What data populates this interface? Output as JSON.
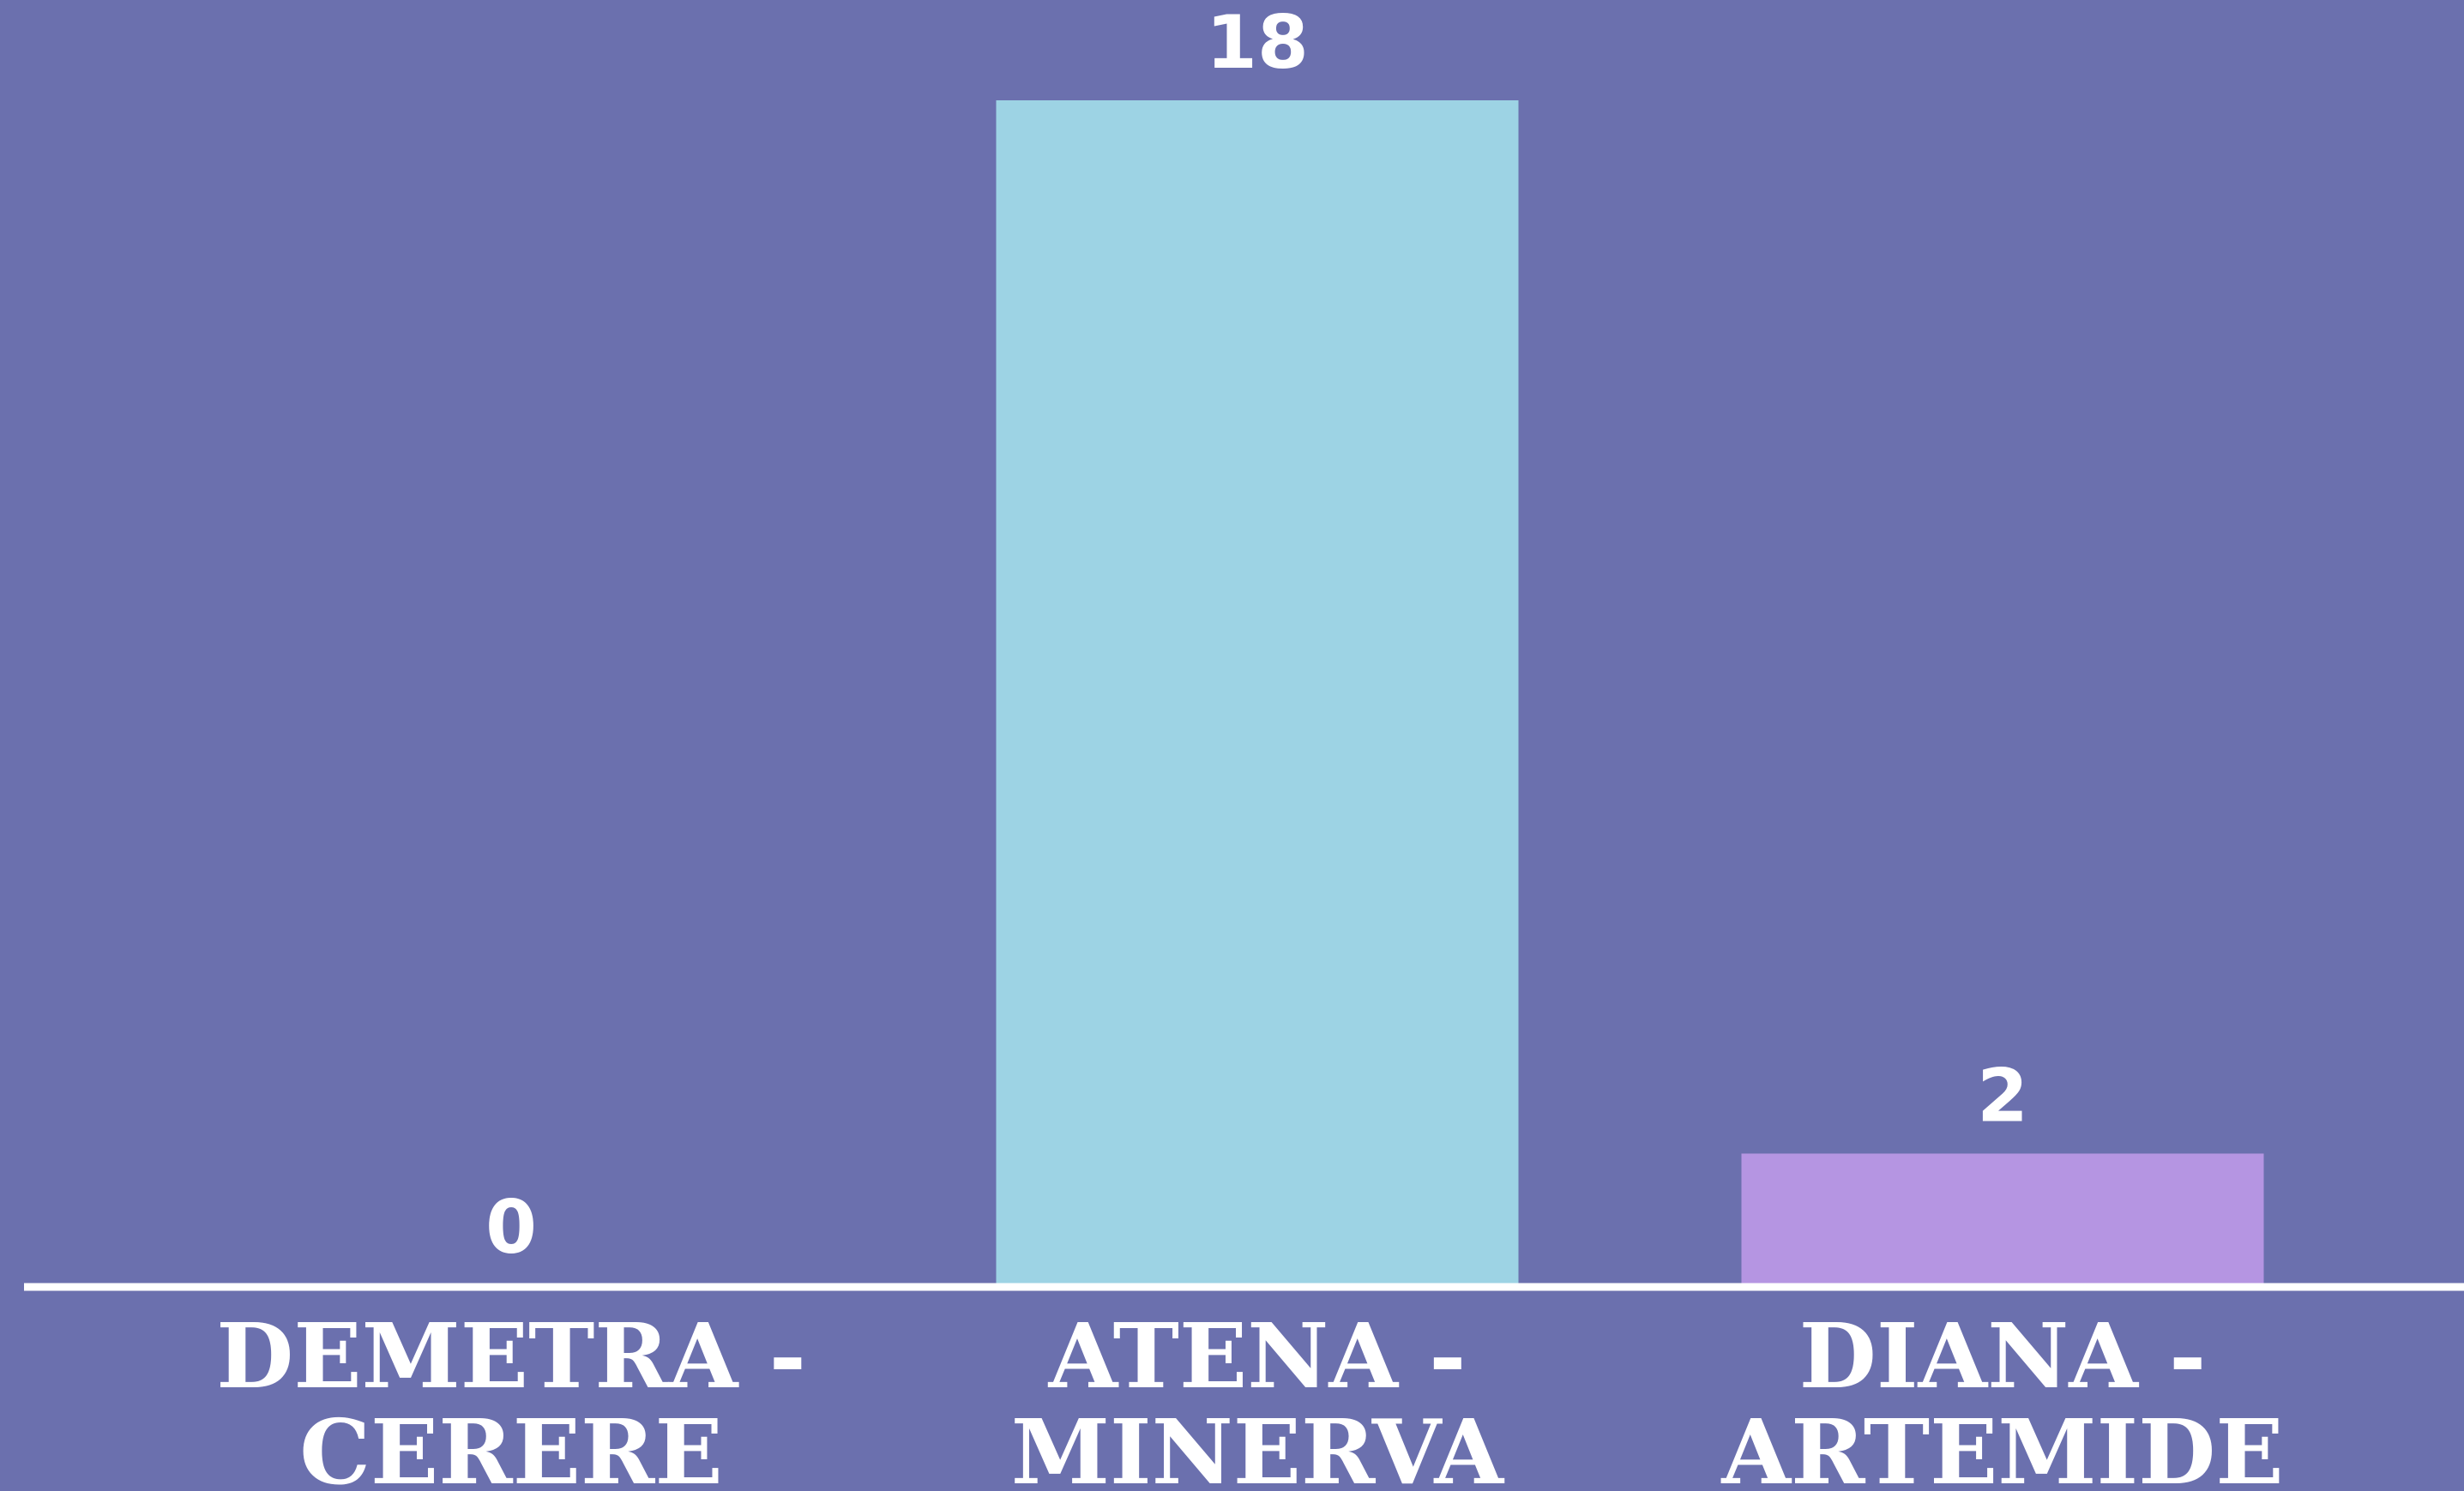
{
  "chart_data": {
    "type": "bar",
    "categories": [
      [
        "DEMETRA -",
        "CERERE"
      ],
      [
        "ATENA -",
        "MINERVA"
      ],
      [
        "DIANA -",
        "ARTEMIDE"
      ]
    ],
    "values": [
      0,
      18,
      2
    ],
    "value_labels": [
      "0",
      "18",
      "2"
    ],
    "bar_colors": [
      "#9dd3e4",
      "#9dd3e4",
      "#b595e2"
    ],
    "background_color": "#6b70ae",
    "axis_color": "#ffffff",
    "text_color": "#ffffff",
    "ylim": [
      0,
      18
    ],
    "grid": false,
    "legend": "none",
    "title": "",
    "xlabel": "",
    "ylabel": ""
  }
}
